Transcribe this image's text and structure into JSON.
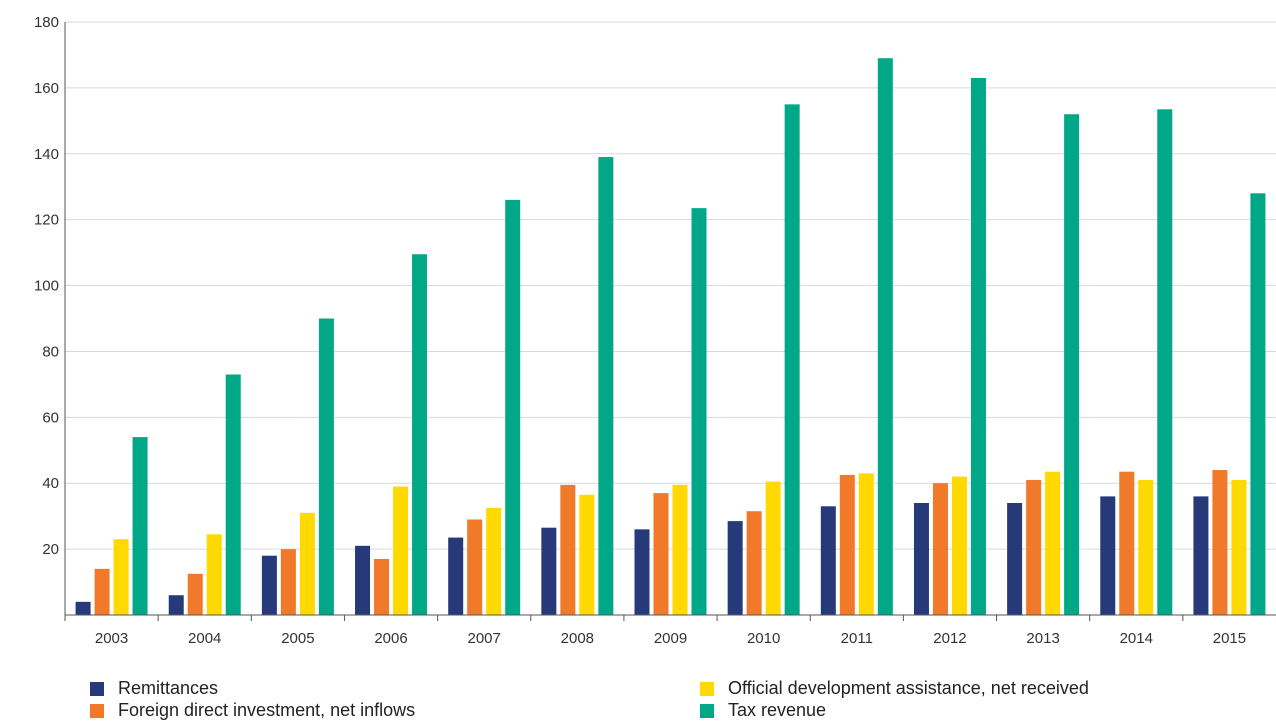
{
  "chart_data": {
    "type": "bar",
    "title": "",
    "xlabel": "",
    "ylabel": "",
    "ylim": [
      0,
      180
    ],
    "yticks": [
      20,
      40,
      60,
      80,
      100,
      120,
      140,
      160,
      180
    ],
    "grid": true,
    "legend_position": "bottom",
    "categories": [
      "2003",
      "2004",
      "2005",
      "2006",
      "2007",
      "2008",
      "2009",
      "2010",
      "2011",
      "2012",
      "2013",
      "2014",
      "2015"
    ],
    "series": [
      {
        "name": "Remittances",
        "color": "#263a7a",
        "values": [
          4,
          6,
          18,
          21,
          23.5,
          26.5,
          26,
          28.5,
          33,
          34,
          34,
          36,
          36
        ]
      },
      {
        "name": "Foreign direct investment, net inflows",
        "color": "#f07a2a",
        "values": [
          14,
          12.5,
          20,
          17,
          29,
          39.5,
          37,
          31.5,
          42.5,
          40,
          41,
          43.5,
          44
        ]
      },
      {
        "name": "Official development assistance, net received",
        "color": "#ffd900",
        "values": [
          23,
          24.5,
          31,
          39,
          32.5,
          36.5,
          39.5,
          40.5,
          43,
          42,
          43.5,
          41,
          41
        ]
      },
      {
        "name": "Tax revenue",
        "color": "#00a887",
        "values": [
          54,
          73,
          90,
          109.5,
          126,
          139,
          123.5,
          155,
          169,
          163,
          152,
          153.5,
          128
        ]
      }
    ]
  }
}
